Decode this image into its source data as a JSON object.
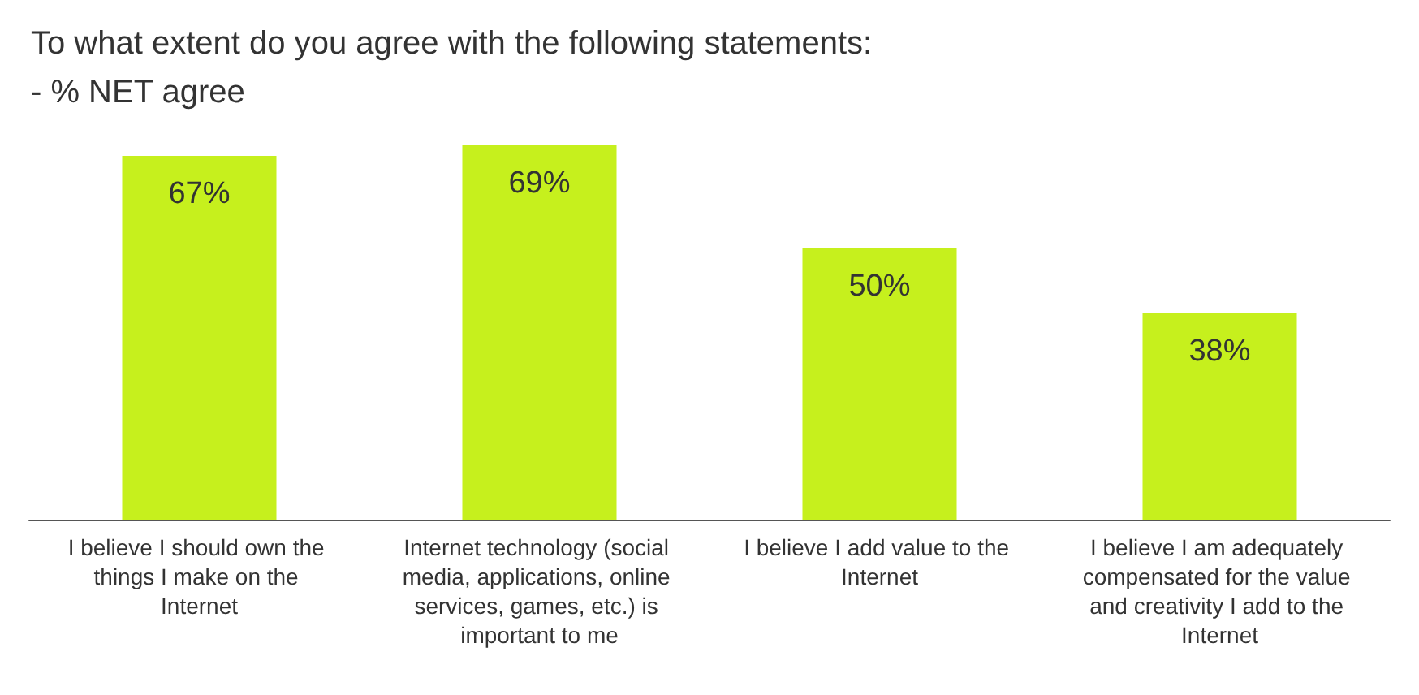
{
  "chart_data": {
    "type": "bar",
    "title": "To what extent do you agree with the following statements:",
    "subtitle": "- % NET agree",
    "categories": [
      "I believe I should own the things I make on the Internet",
      "Internet technology (social media, applications, online services, games, etc.) is important to me",
      "I believe I add value to the Internet",
      "I believe I am adequately compensated for the value and creativity I add to the Internet"
    ],
    "values": [
      67,
      69,
      50,
      38
    ],
    "value_labels": [
      "67%",
      "69%",
      "50%",
      "38%"
    ],
    "color": "#c6f01d"
  }
}
